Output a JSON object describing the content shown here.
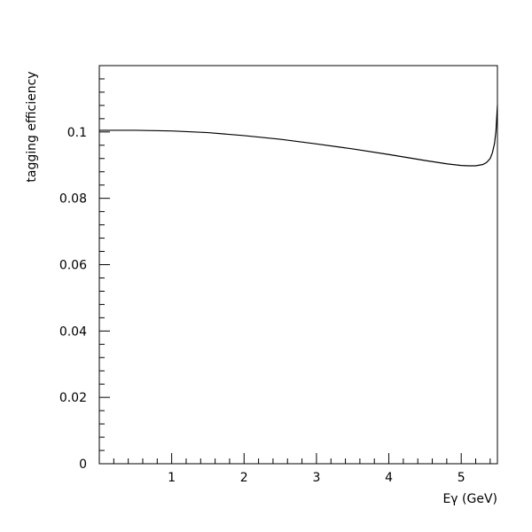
{
  "chart_data": {
    "type": "line",
    "title": "",
    "xlabel": "Eγ (GeV)",
    "ylabel": "tagging efficiency",
    "xlim": [
      0,
      5.5
    ],
    "ylim": [
      0,
      0.12
    ],
    "x_ticks": [
      1,
      2,
      3,
      4,
      5
    ],
    "x_tick_labels": [
      "1",
      "2",
      "3",
      "4",
      "5"
    ],
    "x_minor_step": 0.2,
    "y_ticks": [
      0,
      0.02,
      0.04,
      0.06,
      0.08,
      0.1
    ],
    "y_tick_labels": [
      "0",
      "0.02",
      "0.04",
      "0.06",
      "0.08",
      "0.1"
    ],
    "y_minor_step": 0.004,
    "grid": false,
    "legend": "none",
    "series": [
      {
        "x": [
          0,
          0.5,
          1.0,
          1.5,
          2.0,
          2.5,
          3.0,
          3.5,
          4.0,
          4.5,
          4.8,
          5.0,
          5.1,
          5.2,
          5.3,
          5.35,
          5.4,
          5.43,
          5.46,
          5.48,
          5.5
        ],
        "y": [
          0.1005,
          0.1005,
          0.1003,
          0.0998,
          0.0989,
          0.0978,
          0.0964,
          0.0949,
          0.0932,
          0.0914,
          0.0904,
          0.0899,
          0.0898,
          0.0898,
          0.0902,
          0.0908,
          0.092,
          0.0937,
          0.0965,
          0.1003,
          0.108
        ]
      }
    ],
    "line_color": "#000000"
  }
}
